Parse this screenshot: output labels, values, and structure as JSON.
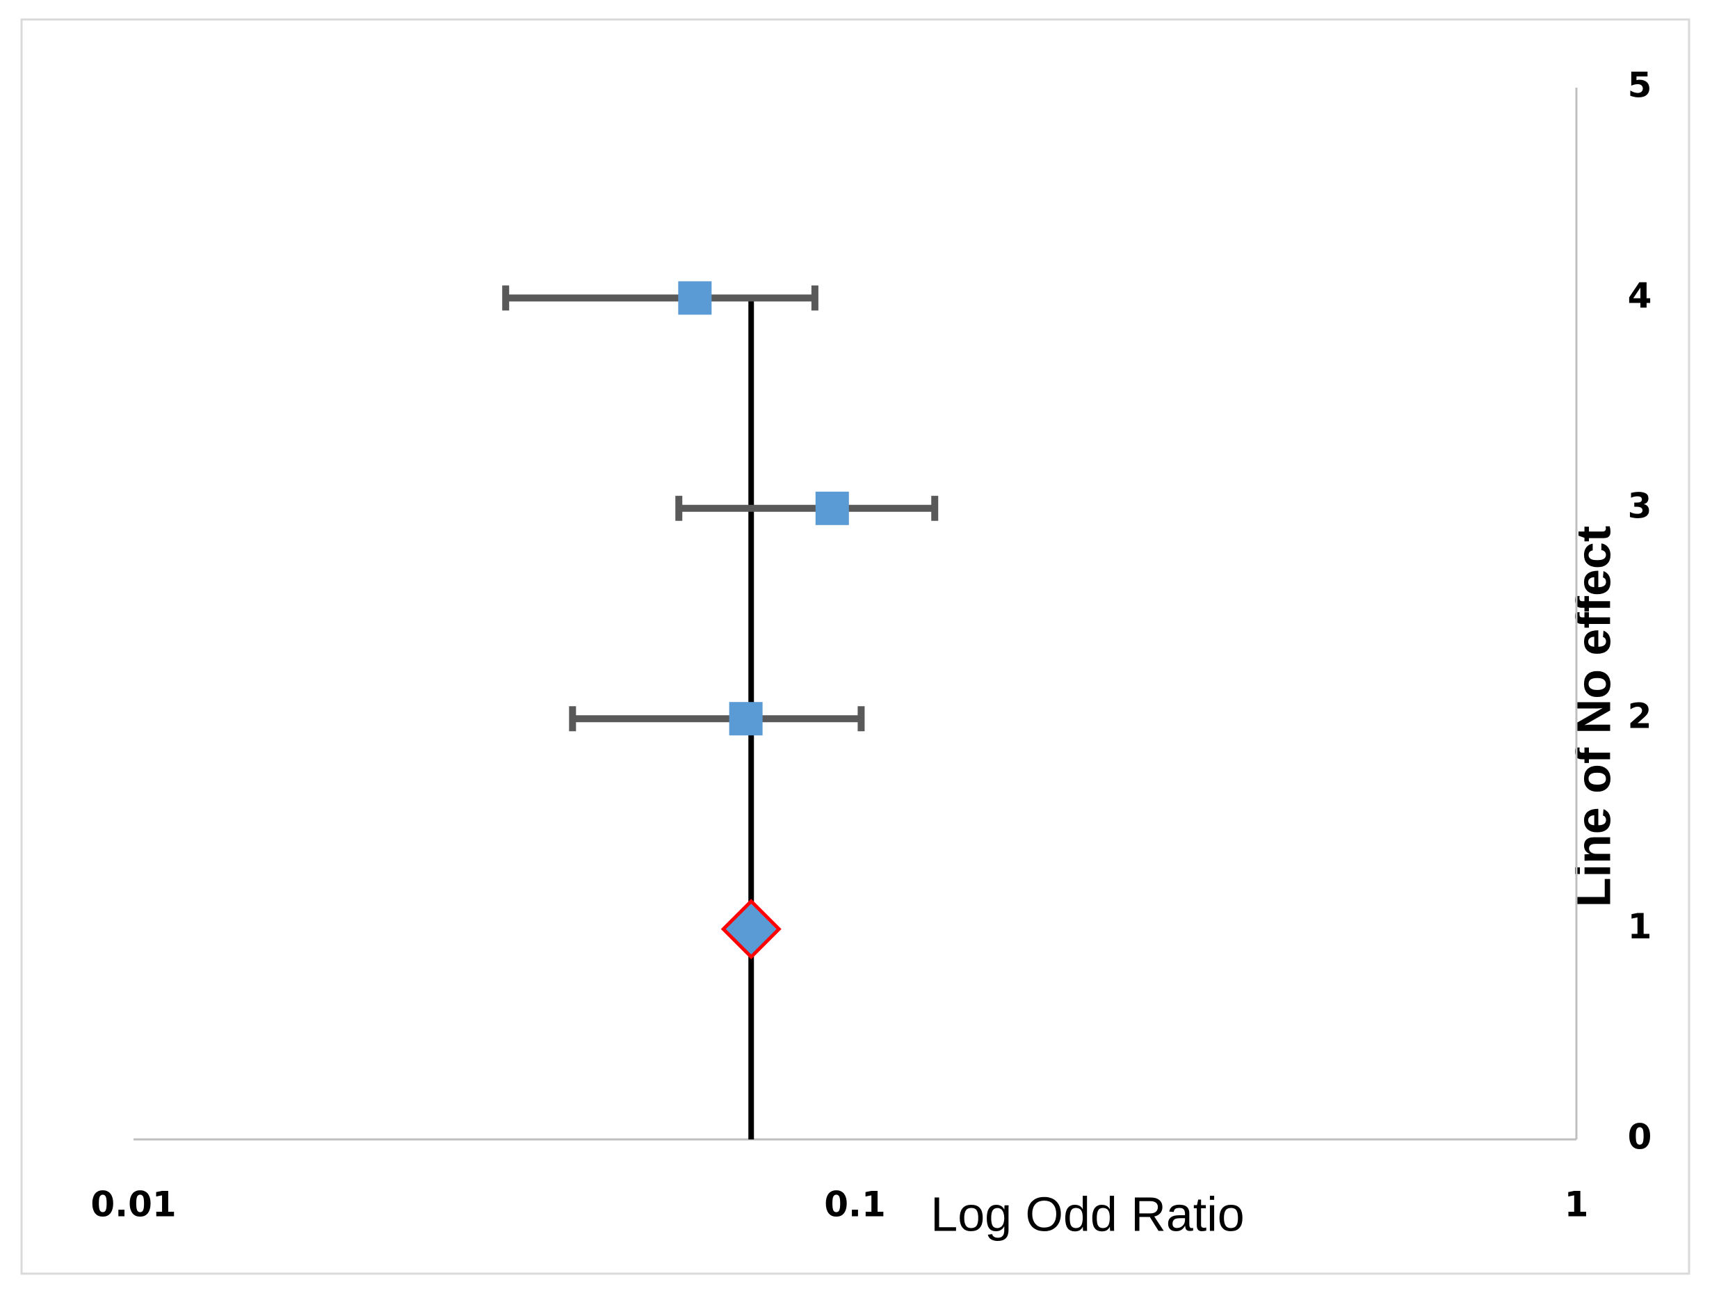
{
  "chart_data": {
    "type": "forest",
    "x_label": "Log Odd Ratio",
    "y_label": "Line of No effect",
    "x_log": true,
    "xlim": [
      0.01,
      1
    ],
    "xticks": [
      0.01,
      0.1,
      1
    ],
    "ylim": [
      0,
      5
    ],
    "yticks": [
      0,
      1,
      2,
      3,
      4,
      5
    ],
    "grid": false,
    "series": [
      {
        "marker": "square",
        "color": "#5b9bd5",
        "error_color": "#595959",
        "x": [
          0.06,
          0.093,
          0.0706
        ],
        "y": [
          4,
          3,
          2
        ],
        "x_low": [
          0.0328,
          0.057,
          0.0406
        ],
        "x_high": [
          0.088,
          0.129,
          0.102
        ]
      },
      {
        "marker": "diamond",
        "color": "#5b9bd5",
        "edge_color": "#ff0000",
        "x": [
          0.0718
        ],
        "y": [
          1
        ]
      },
      {
        "marker": "line",
        "color": "#000000",
        "x": [
          0.0718,
          0.0718
        ],
        "y": [
          0,
          4
        ]
      }
    ]
  }
}
